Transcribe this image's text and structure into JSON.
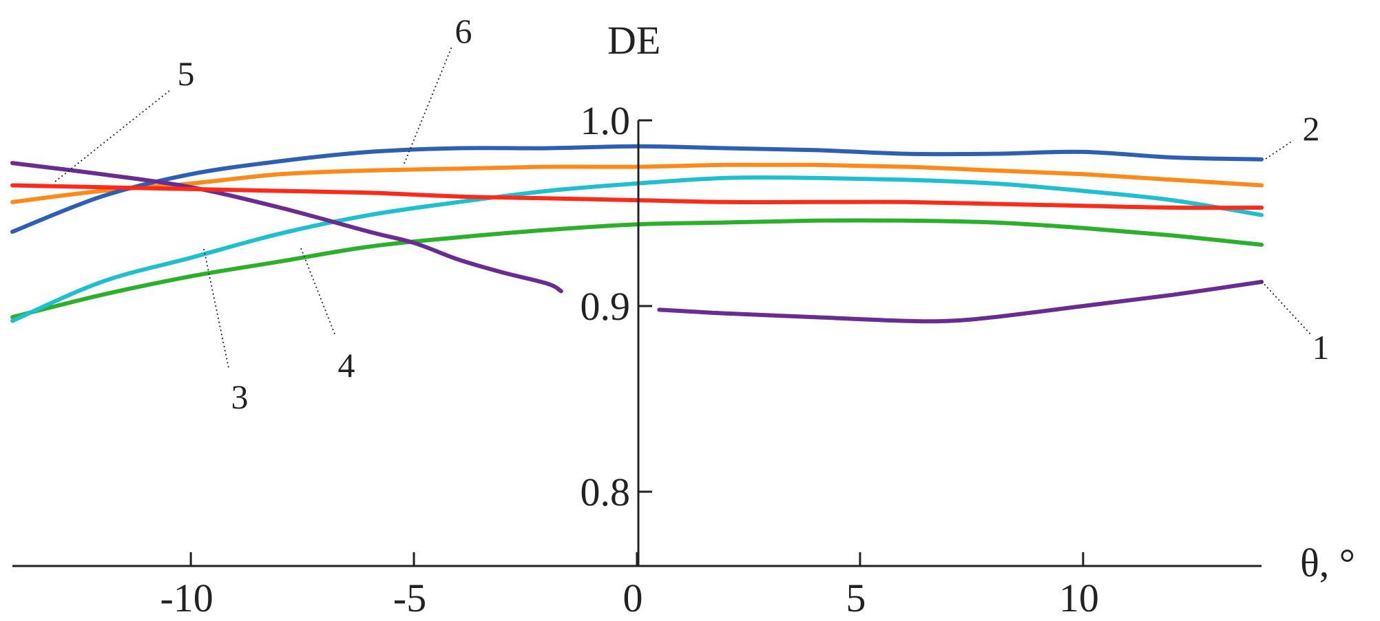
{
  "chart_data": {
    "type": "line",
    "xlabel": "θ, °",
    "ylabel": "DE",
    "xlim": [
      -14,
      14
    ],
    "ylim": [
      0.76,
      1.0
    ],
    "x_ticks": [
      -10,
      -5,
      0,
      5,
      10
    ],
    "x_tick_labels": [
      "-10",
      "-5",
      "0",
      "5",
      "10"
    ],
    "y_ticks": [
      0.8,
      0.9,
      1.0
    ],
    "y_tick_labels": [
      "0.8",
      "0.9",
      "1.0"
    ],
    "grid": false,
    "legend": "none",
    "series": [
      {
        "name": "1",
        "color": "#6a2c91",
        "segments": [
          {
            "x": [
              -14,
              -12,
              -10,
              -8,
              -6,
              -5,
              -4,
              -3,
              -2,
              -1.7
            ],
            "y": [
              0.977,
              0.971,
              0.964,
              0.953,
              0.94,
              0.934,
              0.925,
              0.918,
              0.912,
              0.908
            ]
          },
          {
            "x": [
              0.5,
              2,
              4,
              6,
              7,
              8,
              10,
              12,
              14
            ],
            "y": [
              0.898,
              0.896,
              0.894,
              0.892,
              0.892,
              0.894,
              0.9,
              0.906,
              0.913
            ]
          }
        ]
      },
      {
        "name": "2",
        "color": "#2f5fb3",
        "x": [
          -14,
          -12,
          -10,
          -8,
          -6,
          -4,
          -2,
          0,
          2,
          4,
          6,
          8,
          10,
          12,
          14
        ],
        "y": [
          0.94,
          0.959,
          0.971,
          0.978,
          0.983,
          0.985,
          0.985,
          0.986,
          0.985,
          0.984,
          0.982,
          0.982,
          0.983,
          0.98,
          0.979
        ]
      },
      {
        "name": "3",
        "color": "#1fbfcf",
        "x": [
          -14,
          -12,
          -10,
          -8,
          -6,
          -4,
          -2,
          0,
          2,
          4,
          6,
          8,
          10,
          12,
          14
        ],
        "y": [
          0.892,
          0.913,
          0.926,
          0.939,
          0.949,
          0.956,
          0.962,
          0.966,
          0.969,
          0.969,
          0.968,
          0.966,
          0.962,
          0.957,
          0.949
        ]
      },
      {
        "name": "4",
        "color": "#2cb02c",
        "x": [
          -14,
          -12,
          -10,
          -8,
          -6,
          -4,
          -2,
          0,
          2,
          4,
          6,
          8,
          10,
          12,
          14
        ],
        "y": [
          0.894,
          0.906,
          0.916,
          0.924,
          0.932,
          0.937,
          0.941,
          0.944,
          0.945,
          0.946,
          0.946,
          0.945,
          0.942,
          0.938,
          0.933
        ]
      },
      {
        "name": "5",
        "color": "#ff2a1a",
        "x": [
          -14,
          -12,
          -10,
          -8,
          -6,
          -4,
          -2,
          0,
          2,
          4,
          6,
          8,
          10,
          12,
          14
        ],
        "y": [
          0.965,
          0.964,
          0.963,
          0.962,
          0.961,
          0.959,
          0.958,
          0.957,
          0.956,
          0.956,
          0.956,
          0.955,
          0.954,
          0.953,
          0.953
        ]
      },
      {
        "name": "6",
        "color": "#ff8a1a",
        "x": [
          -14,
          -12,
          -10,
          -8,
          -6,
          -4,
          -2,
          0,
          2,
          4,
          6,
          8,
          10,
          12,
          14
        ],
        "y": [
          0.956,
          0.962,
          0.966,
          0.971,
          0.973,
          0.974,
          0.975,
          0.975,
          0.976,
          0.976,
          0.975,
          0.973,
          0.971,
          0.968,
          0.965
        ]
      }
    ]
  }
}
